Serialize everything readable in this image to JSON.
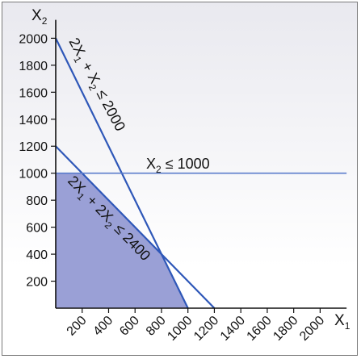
{
  "chart_data": {
    "type": "line",
    "x_axis_label": {
      "base": "X",
      "sub": "1"
    },
    "y_axis_label": {
      "base": "X",
      "sub": "2"
    },
    "xlim": [
      0,
      2200
    ],
    "ylim": [
      0,
      2100
    ],
    "x_ticks": [
      "200",
      "400",
      "600",
      "800",
      "1000",
      "1200",
      "1400",
      "1600",
      "1800",
      "2000"
    ],
    "y_ticks": [
      "200",
      "400",
      "600",
      "800",
      "1000",
      "1200",
      "1400",
      "1600",
      "1800",
      "2000"
    ],
    "constraints": [
      {
        "label_parts": [
          {
            "t": "2X"
          },
          {
            "t": "1",
            "sub": true
          },
          {
            "t": " + X"
          },
          {
            "t": "2",
            "sub": true
          },
          {
            "t": " ≤ 2000"
          }
        ],
        "points": [
          [
            0,
            2000
          ],
          [
            1000,
            0
          ]
        ],
        "color": "#2e57b8"
      },
      {
        "label_parts": [
          {
            "t": "2X"
          },
          {
            "t": "1",
            "sub": true
          },
          {
            "t": " + 2X"
          },
          {
            "t": "2",
            "sub": true
          },
          {
            "t": " ≤ 2400"
          }
        ],
        "points": [
          [
            0,
            1200
          ],
          [
            1200,
            0
          ]
        ],
        "color": "#2e57b8"
      },
      {
        "label_parts": [
          {
            "t": "X"
          },
          {
            "t": "2",
            "sub": true
          },
          {
            "t": " ≤ 1000"
          }
        ],
        "points": [
          [
            0,
            1000
          ],
          [
            2200,
            1000
          ]
        ],
        "color": "#5b7ccc"
      }
    ],
    "feasible_region": {
      "vertices": [
        [
          0,
          0
        ],
        [
          0,
          1000
        ],
        [
          200,
          1000
        ],
        [
          800,
          400
        ],
        [
          1000,
          0
        ]
      ],
      "color": "#9aa0d6"
    },
    "grid": false,
    "legend": "none"
  }
}
